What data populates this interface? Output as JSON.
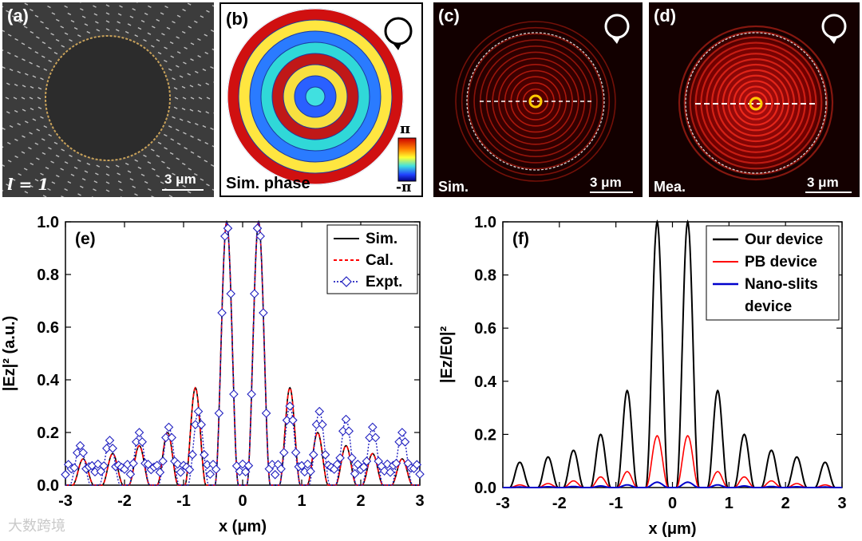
{
  "panels": {
    "a": {
      "label": "(a)",
      "l_value": "l = 1",
      "scale": "3 μm"
    },
    "b": {
      "label": "(b)",
      "caption": "Sim. phase",
      "cb_top": "π",
      "cb_bottom": "-π"
    },
    "c": {
      "label": "(c)",
      "caption": "Sim.",
      "scale": "3 μm"
    },
    "d": {
      "label": "(d)",
      "caption": "Mea.",
      "scale": "3 μm"
    }
  },
  "watermark": "大数跨境",
  "chart_data": [
    {
      "id": "e",
      "type": "line",
      "panel_label": "(e)",
      "xlabel": "x (μm)",
      "ylabel": "|Ez|² (a.u.)",
      "xlim": [
        -3,
        3
      ],
      "ylim": [
        0,
        1.0
      ],
      "xticks": [
        -3,
        -2,
        -1,
        0,
        1,
        2,
        3
      ],
      "yticks": [
        "0.0",
        "0.2",
        "0.4",
        "0.6",
        "0.8",
        "1.0"
      ],
      "legend": {
        "placement": "top-right",
        "entries": [
          "Sim.",
          "Cal.",
          "Expt."
        ]
      },
      "series": [
        {
          "name": "Sim.",
          "color": "#000000",
          "style": "solid",
          "peaks": [
            [
              -2.7,
              0.1
            ],
            [
              -2.2,
              0.12
            ],
            [
              -1.75,
              0.15
            ],
            [
              -1.27,
              0.2
            ],
            [
              -0.8,
              0.37
            ],
            [
              -0.27,
              1.0
            ],
            [
              0.27,
              1.0
            ],
            [
              0.8,
              0.37
            ],
            [
              1.27,
              0.2
            ],
            [
              1.75,
              0.15
            ],
            [
              2.2,
              0.12
            ],
            [
              2.7,
              0.1
            ]
          ]
        },
        {
          "name": "Cal.",
          "color": "#ff0000",
          "style": "dashed",
          "peaks": [
            [
              -2.7,
              0.1
            ],
            [
              -2.2,
              0.12
            ],
            [
              -1.75,
              0.15
            ],
            [
              -1.27,
              0.2
            ],
            [
              -0.8,
              0.37
            ],
            [
              -0.27,
              1.0
            ],
            [
              0.27,
              1.0
            ],
            [
              0.8,
              0.37
            ],
            [
              1.27,
              0.2
            ],
            [
              1.75,
              0.15
            ],
            [
              2.2,
              0.12
            ],
            [
              2.7,
              0.1
            ]
          ]
        },
        {
          "name": "Expt.",
          "color": "#2020c0",
          "style": "dotted",
          "marker": "diamond",
          "peaks": [
            [
              -2.75,
              0.15
            ],
            [
              -2.25,
              0.17
            ],
            [
              -1.75,
              0.2
            ],
            [
              -1.25,
              0.22
            ],
            [
              -0.75,
              0.28
            ],
            [
              -0.27,
              1.0
            ],
            [
              0.27,
              1.0
            ],
            [
              0.8,
              0.3
            ],
            [
              1.3,
              0.28
            ],
            [
              1.75,
              0.25
            ],
            [
              2.2,
              0.22
            ],
            [
              2.7,
              0.2
            ]
          ]
        }
      ]
    },
    {
      "id": "f",
      "type": "line",
      "panel_label": "(f)",
      "xlabel": "x (μm)",
      "ylabel": "|Ez/E0|²",
      "xlim": [
        -3,
        3
      ],
      "ylim": [
        0,
        1.0
      ],
      "xticks": [
        -3,
        -2,
        -1,
        0,
        1,
        2,
        3
      ],
      "yticks": [
        "0.0",
        "0.2",
        "0.4",
        "0.6",
        "0.8",
        "1.0"
      ],
      "legend": {
        "placement": "top-right",
        "entries": [
          "Our device",
          "PB device",
          "Nano-slits",
          "device"
        ]
      },
      "series": [
        {
          "name": "Our device",
          "color": "#000000",
          "peaks": [
            [
              -2.7,
              0.095
            ],
            [
              -2.2,
              0.115
            ],
            [
              -1.75,
              0.14
            ],
            [
              -1.27,
              0.2
            ],
            [
              -0.8,
              0.365
            ],
            [
              -0.27,
              1.0
            ],
            [
              0.27,
              1.0
            ],
            [
              0.8,
              0.365
            ],
            [
              1.27,
              0.2
            ],
            [
              1.75,
              0.14
            ],
            [
              2.2,
              0.115
            ],
            [
              2.7,
              0.095
            ]
          ]
        },
        {
          "name": "PB device",
          "color": "#ff0000",
          "peaks": [
            [
              -2.7,
              0.01
            ],
            [
              -2.2,
              0.015
            ],
            [
              -1.75,
              0.025
            ],
            [
              -1.27,
              0.04
            ],
            [
              -0.8,
              0.06
            ],
            [
              -0.27,
              0.195
            ],
            [
              0.27,
              0.195
            ],
            [
              0.8,
              0.06
            ],
            [
              1.27,
              0.04
            ],
            [
              1.75,
              0.025
            ],
            [
              2.2,
              0.015
            ],
            [
              2.7,
              0.01
            ]
          ]
        },
        {
          "name": "Nano-slits device",
          "color": "#0000cc",
          "peaks": [
            [
              -2.7,
              0.002
            ],
            [
              -2.2,
              0.003
            ],
            [
              -1.75,
              0.004
            ],
            [
              -1.27,
              0.006
            ],
            [
              -0.8,
              0.01
            ],
            [
              -0.27,
              0.02
            ],
            [
              0.27,
              0.02
            ],
            [
              0.8,
              0.01
            ],
            [
              1.27,
              0.006
            ],
            [
              1.75,
              0.004
            ],
            [
              2.2,
              0.003
            ],
            [
              2.7,
              0.002
            ]
          ]
        }
      ]
    }
  ]
}
